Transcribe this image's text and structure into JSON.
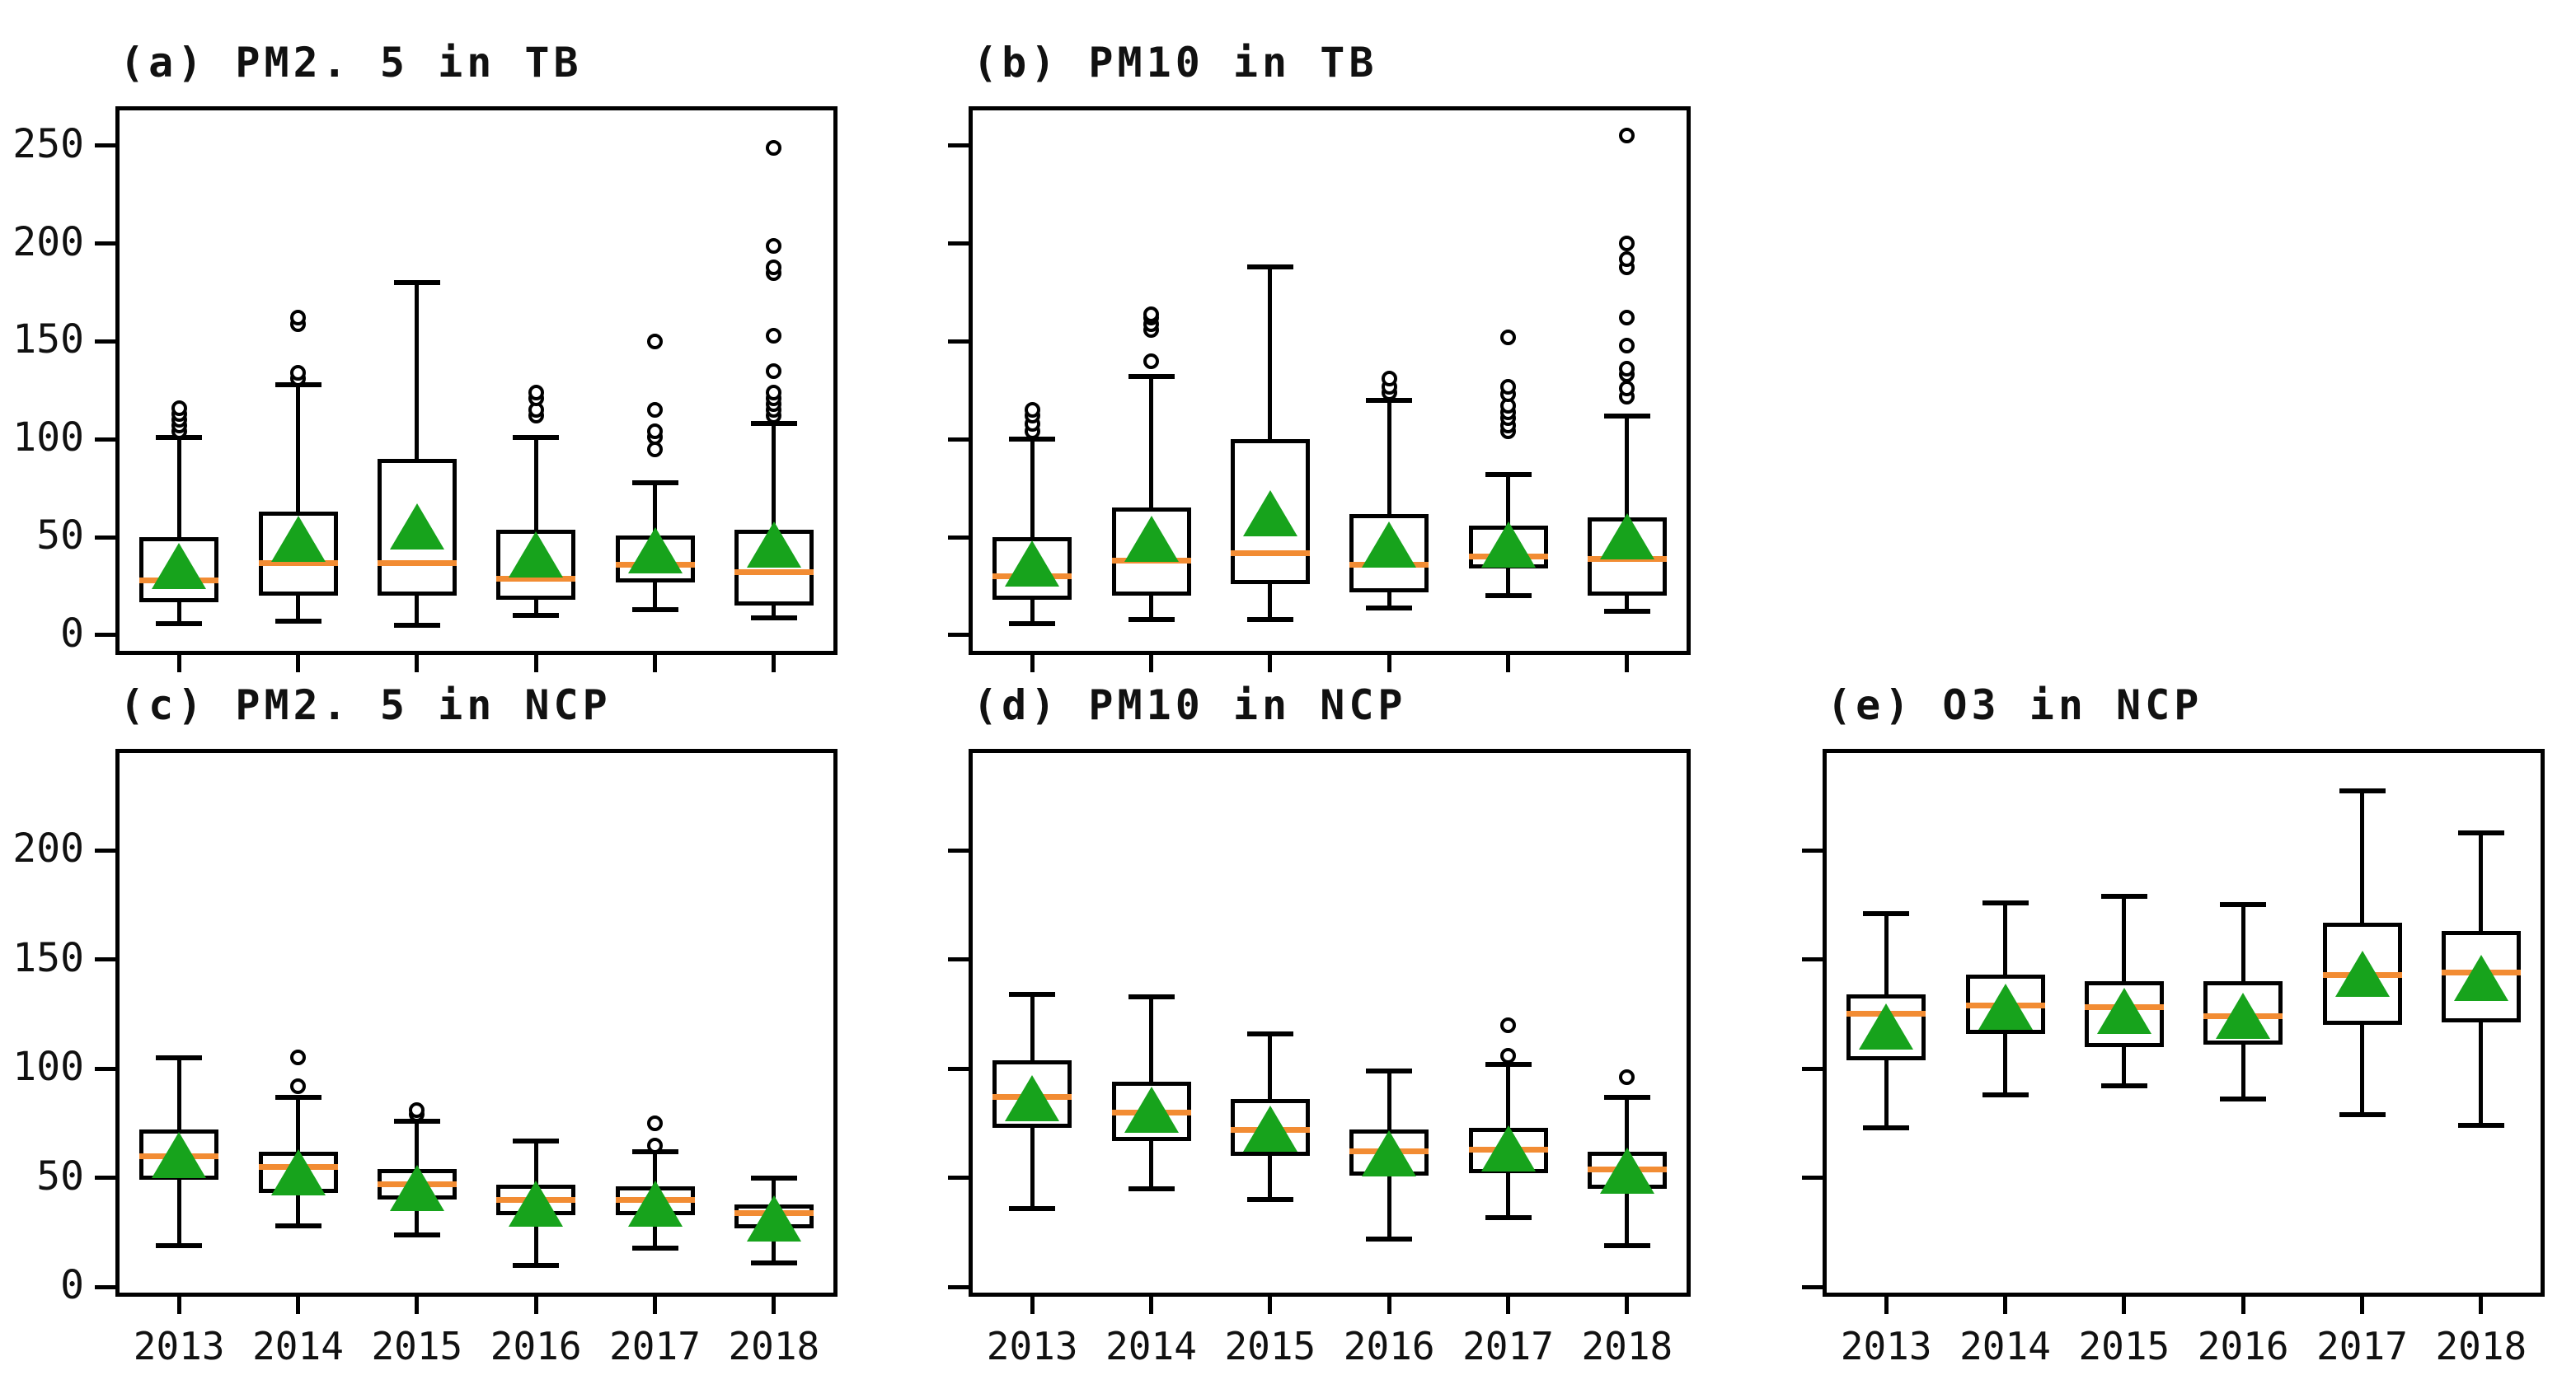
{
  "figure_title": "",
  "colors": {
    "background": "#ffffff",
    "frame": "#000000",
    "median": "#f28c33",
    "mean_marker": "#17a31c",
    "outlier_stroke": "#000000"
  },
  "years": [
    "2013",
    "2014",
    "2015",
    "2016",
    "2017",
    "2018"
  ],
  "chart_data": [
    {
      "id": "a",
      "type": "box",
      "title": "(a) PM2. 5 in TB",
      "pollutant": "PM2.5",
      "region": "TB",
      "categories": [
        "2013",
        "2014",
        "2015",
        "2016",
        "2017",
        "2018"
      ],
      "ylim": [
        -8,
        268
      ],
      "yticks": [
        0,
        50,
        100,
        150,
        200,
        250
      ],
      "ytick_labels": [
        "0",
        "50",
        "100",
        "150",
        "200",
        "250"
      ],
      "show_ytick_labels": true,
      "show_xtick_labels": false,
      "grid": false,
      "series": [
        {
          "category": "2013",
          "low": 6,
          "q1": 17,
          "median": 28,
          "q3": 50,
          "high": 101,
          "mean": 35,
          "outliers": [
            104,
            107,
            110,
            113,
            116
          ]
        },
        {
          "category": "2014",
          "low": 7,
          "q1": 20,
          "median": 37,
          "q3": 63,
          "high": 128,
          "mean": 49,
          "outliers": [
            131,
            134,
            159,
            162
          ]
        },
        {
          "category": "2015",
          "low": 5,
          "q1": 20,
          "median": 37,
          "q3": 90,
          "high": 180,
          "mean": 55,
          "outliers": []
        },
        {
          "category": "2016",
          "low": 10,
          "q1": 18,
          "median": 29,
          "q3": 54,
          "high": 101,
          "mean": 41,
          "outliers": [
            112,
            115,
            121,
            124
          ]
        },
        {
          "category": "2017",
          "low": 13,
          "q1": 27,
          "median": 36,
          "q3": 51,
          "high": 78,
          "mean": 43,
          "outliers": [
            95,
            101,
            104,
            115,
            150
          ]
        },
        {
          "category": "2018",
          "low": 9,
          "q1": 15,
          "median": 32,
          "q3": 54,
          "high": 108,
          "mean": 46,
          "outliers": [
            112,
            115,
            118,
            121,
            124,
            135,
            153,
            185,
            188,
            199,
            249
          ]
        }
      ]
    },
    {
      "id": "b",
      "type": "box",
      "title": "(b) PM10 in TB",
      "pollutant": "PM10",
      "region": "TB",
      "categories": [
        "2013",
        "2014",
        "2015",
        "2016",
        "2017",
        "2018"
      ],
      "ylim": [
        -8,
        268
      ],
      "yticks": [
        0,
        50,
        100,
        150,
        200,
        250
      ],
      "ytick_labels": [
        "",
        "",
        "",
        "",
        "",
        ""
      ],
      "show_ytick_labels": false,
      "show_xtick_labels": false,
      "grid": false,
      "series": [
        {
          "category": "2013",
          "low": 6,
          "q1": 18,
          "median": 30,
          "q3": 50,
          "high": 100,
          "mean": 36,
          "outliers": [
            104,
            108,
            112,
            115
          ]
        },
        {
          "category": "2014",
          "low": 8,
          "q1": 20,
          "median": 38,
          "q3": 65,
          "high": 132,
          "mean": 49,
          "outliers": [
            140,
            156,
            159,
            162,
            164
          ]
        },
        {
          "category": "2015",
          "low": 8,
          "q1": 26,
          "median": 42,
          "q3": 100,
          "high": 188,
          "mean": 62,
          "outliers": []
        },
        {
          "category": "2016",
          "low": 14,
          "q1": 22,
          "median": 36,
          "q3": 62,
          "high": 120,
          "mean": 46,
          "outliers": [
            124,
            127,
            131
          ]
        },
        {
          "category": "2017",
          "low": 20,
          "q1": 34,
          "median": 40,
          "q3": 56,
          "high": 82,
          "mean": 46,
          "outliers": [
            104,
            107,
            111,
            114,
            117,
            123,
            127,
            152
          ]
        },
        {
          "category": "2018",
          "low": 12,
          "q1": 20,
          "median": 39,
          "q3": 60,
          "high": 112,
          "mean": 50,
          "outliers": [
            122,
            126,
            133,
            136,
            148,
            162,
            188,
            192,
            200,
            255
          ]
        }
      ]
    },
    {
      "id": "c",
      "type": "box",
      "title": "(c) PM2. 5 in NCP",
      "pollutant": "PM2.5",
      "region": "NCP",
      "categories": [
        "2013",
        "2014",
        "2015",
        "2016",
        "2017",
        "2018"
      ],
      "ylim": [
        -2.5,
        244.5
      ],
      "yticks": [
        0,
        50,
        100,
        150,
        200
      ],
      "ytick_labels": [
        "0",
        "50",
        "100",
        "150",
        "200"
      ],
      "show_ytick_labels": true,
      "show_xtick_labels": true,
      "grid": false,
      "series": [
        {
          "category": "2013",
          "low": 19,
          "q1": 49,
          "median": 60,
          "q3": 72,
          "high": 105,
          "mean": 60,
          "outliers": []
        },
        {
          "category": "2014",
          "low": 28,
          "q1": 43,
          "median": 55,
          "q3": 62,
          "high": 87,
          "mean": 52,
          "outliers": [
            92,
            105
          ]
        },
        {
          "category": "2015",
          "low": 24,
          "q1": 40,
          "median": 47,
          "q3": 54,
          "high": 76,
          "mean": 45,
          "outliers": [
            79,
            81
          ]
        },
        {
          "category": "2016",
          "low": 10,
          "q1": 33,
          "median": 40,
          "q3": 47,
          "high": 67,
          "mean": 38,
          "outliers": []
        },
        {
          "category": "2017",
          "low": 18,
          "q1": 33,
          "median": 40,
          "q3": 46,
          "high": 62,
          "mean": 38,
          "outliers": [
            65,
            75
          ]
        },
        {
          "category": "2018",
          "low": 11,
          "q1": 27,
          "median": 34,
          "q3": 38,
          "high": 50,
          "mean": 31,
          "outliers": []
        }
      ]
    },
    {
      "id": "d",
      "type": "box",
      "title": "(d) PM10 in NCP",
      "pollutant": "PM10",
      "region": "NCP",
      "categories": [
        "2013",
        "2014",
        "2015",
        "2016",
        "2017",
        "2018"
      ],
      "ylim": [
        -2.5,
        244.5
      ],
      "yticks": [
        0,
        50,
        100,
        150,
        200
      ],
      "ytick_labels": [
        "",
        "",
        "",
        "",
        ""
      ],
      "show_ytick_labels": false,
      "show_xtick_labels": true,
      "grid": false,
      "series": [
        {
          "category": "2013",
          "low": 36,
          "q1": 73,
          "median": 87,
          "q3": 104,
          "high": 134,
          "mean": 86,
          "outliers": []
        },
        {
          "category": "2014",
          "low": 45,
          "q1": 67,
          "median": 80,
          "q3": 94,
          "high": 133,
          "mean": 81,
          "outliers": []
        },
        {
          "category": "2015",
          "low": 40,
          "q1": 60,
          "median": 72,
          "q3": 86,
          "high": 116,
          "mean": 72,
          "outliers": []
        },
        {
          "category": "2016",
          "low": 22,
          "q1": 51,
          "median": 62,
          "q3": 72,
          "high": 99,
          "mean": 61,
          "outliers": []
        },
        {
          "category": "2017",
          "low": 32,
          "q1": 52,
          "median": 63,
          "q3": 73,
          "high": 102,
          "mean": 63,
          "outliers": [
            106,
            120
          ]
        },
        {
          "category": "2018",
          "low": 19,
          "q1": 45,
          "median": 54,
          "q3": 62,
          "high": 87,
          "mean": 53,
          "outliers": [
            96
          ]
        }
      ]
    },
    {
      "id": "e",
      "type": "box",
      "title": "(e) O3 in NCP",
      "pollutant": "O3",
      "region": "NCP",
      "categories": [
        "2013",
        "2014",
        "2015",
        "2016",
        "2017",
        "2018"
      ],
      "ylim": [
        -2.5,
        244.5
      ],
      "yticks": [
        0,
        50,
        100,
        150,
        200
      ],
      "ytick_labels": [
        "",
        "",
        "",
        "",
        ""
      ],
      "show_ytick_labels": false,
      "show_xtick_labels": true,
      "grid": false,
      "series": [
        {
          "category": "2013",
          "low": 73,
          "q1": 104,
          "median": 125,
          "q3": 134,
          "high": 171,
          "mean": 119,
          "outliers": []
        },
        {
          "category": "2014",
          "low": 88,
          "q1": 116,
          "median": 129,
          "q3": 143,
          "high": 176,
          "mean": 128,
          "outliers": []
        },
        {
          "category": "2015",
          "low": 92,
          "q1": 110,
          "median": 128,
          "q3": 140,
          "high": 179,
          "mean": 126,
          "outliers": []
        },
        {
          "category": "2016",
          "low": 86,
          "q1": 111,
          "median": 124,
          "q3": 140,
          "high": 175,
          "mean": 124,
          "outliers": []
        },
        {
          "category": "2017",
          "low": 79,
          "q1": 120,
          "median": 143,
          "q3": 167,
          "high": 227,
          "mean": 143,
          "outliers": []
        },
        {
          "category": "2018",
          "low": 74,
          "q1": 121,
          "median": 144,
          "q3": 163,
          "high": 208,
          "mean": 141,
          "outliers": []
        }
      ]
    }
  ]
}
